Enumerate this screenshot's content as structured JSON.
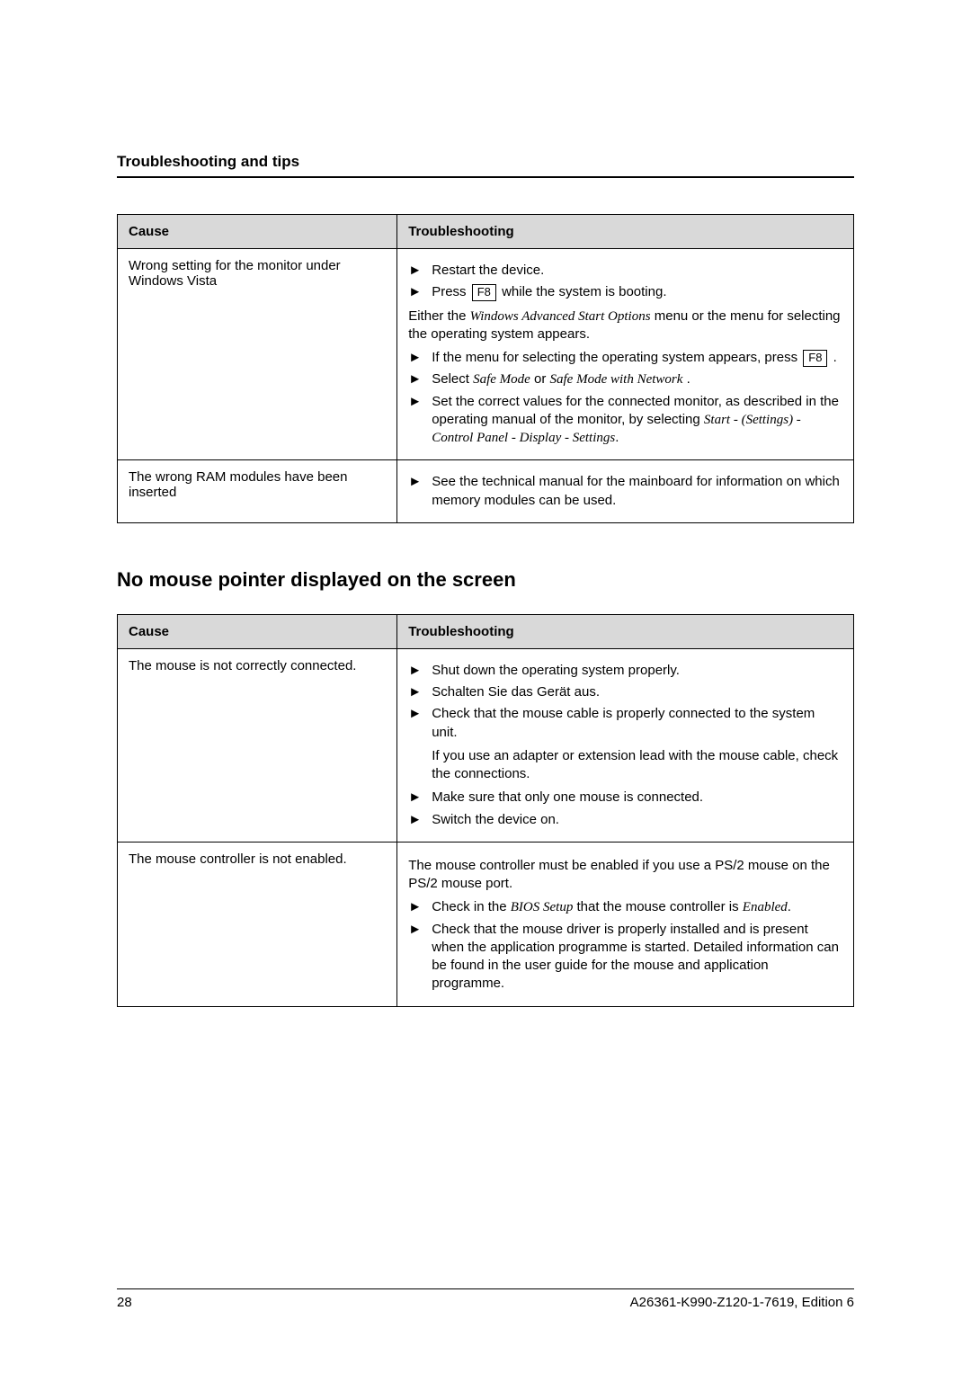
{
  "header": "Troubleshooting and tips",
  "table1": {
    "head_cause": "Cause",
    "head_fix": "Troubleshooting",
    "row1_cause": "Wrong setting for the monitor under Windows Vista",
    "row1_step1": "Restart the device.",
    "row1_step2a": "Press ",
    "row1_step2_key": "F8",
    "row1_step2b": " while the system is booting.",
    "row1_para1a": "Either the ",
    "row1_para1_em": "Windows Advanced Start Options",
    "row1_para1b": " menu or the menu for selecting the operating system appears.",
    "row1_step3a": "If the menu for selecting the operating system appears, press ",
    "row1_step3_key": "F8",
    "row1_step3b": " .",
    "row1_step4a": "Select ",
    "row1_step4_em1": "Safe Mode",
    "row1_step4b": " or ",
    "row1_step4_em2": "Safe Mode with Network",
    "row1_step4c": " .",
    "row1_step5a": "Set the correct values for the connected monitor, as described in the operating manual of the monitor, by selecting ",
    "row1_step5_em": "Start - (Settings) - Control Panel - Display - Settings",
    "row1_step5b": ".",
    "row2_cause": "The wrong RAM modules have been inserted",
    "row2_step1": "See the technical manual for the mainboard for information on which memory modules can be used."
  },
  "subheading": "No mouse pointer displayed on the screen",
  "table2": {
    "head_cause": "Cause",
    "head_fix": "Troubleshooting",
    "row1_cause": "The mouse is not correctly connected.",
    "row1_step1": "Shut down the operating system properly.",
    "row1_step2": "Schalten Sie das Gerät aus.",
    "row1_step3": "Check that the mouse cable is properly connected to the system unit.",
    "row1_para1": "If you use an adapter or extension lead with the mouse cable, check the connections.",
    "row1_step4": "Make sure that only one mouse is connected.",
    "row1_step5": "Switch the device on.",
    "row2_cause": "The mouse controller is not enabled.",
    "row2_para1": "The mouse controller must be enabled if you use a PS/2 mouse on the PS/2 mouse port.",
    "row2_step1a": "Check in the ",
    "row2_step1_em": "BIOS Setup",
    "row2_step1b": " that the mouse controller is ",
    "row2_step1_em2": "Enabled",
    "row2_step1c": ".",
    "row2_step2": "Check that the mouse driver is properly installed and is present when the application programme is started. Detailed information can be found in the user guide for the mouse and application programme."
  },
  "footer_page": "28",
  "footer_doc": "A26361-K990-Z120-1-7619, Edition 6"
}
